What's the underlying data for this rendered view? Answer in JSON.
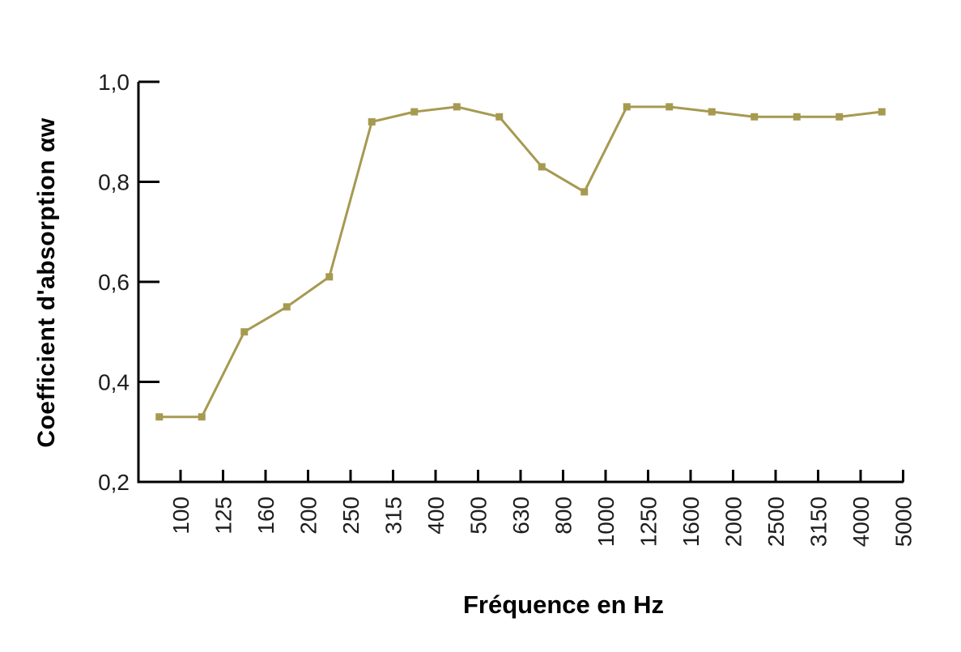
{
  "chart_data": {
    "type": "line",
    "xlabel": "Fréquence en Hz",
    "ylabel": "Coefficient d'absorption αw",
    "categories": [
      "100",
      "125",
      "160",
      "200",
      "250",
      "315",
      "400",
      "500",
      "630",
      "800",
      "1000",
      "1250",
      "1600",
      "2000",
      "2500",
      "3150",
      "4000",
      "5000"
    ],
    "values": [
      0.33,
      0.33,
      0.5,
      0.55,
      0.61,
      0.92,
      0.94,
      0.95,
      0.93,
      0.83,
      0.78,
      0.95,
      0.95,
      0.94,
      0.93,
      0.93,
      0.93,
      0.94
    ],
    "ylim": [
      0.2,
      1.0
    ],
    "yticks": [
      0.2,
      0.4,
      0.6,
      0.8,
      1.0
    ],
    "ytick_labels": [
      "0,2",
      "0,4",
      "0,6",
      "0,8",
      "1,0"
    ],
    "grid": false,
    "legend": "none",
    "line_color": "#a69a51",
    "marker_shape": "square",
    "axis_color": "#000000",
    "tick_label_color": "#1d1d1d",
    "background_color": "#ffffff"
  }
}
